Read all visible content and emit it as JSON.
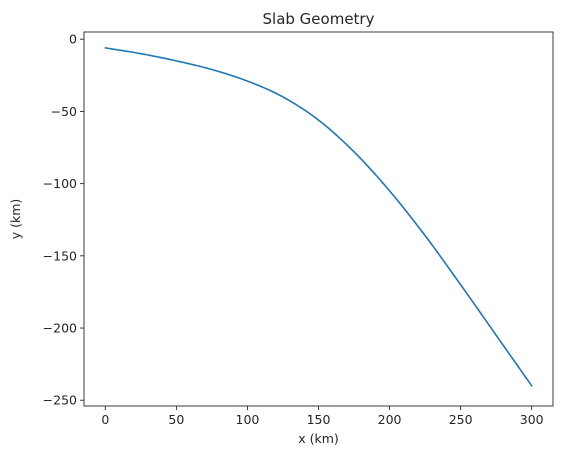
{
  "chart_data": {
    "type": "line",
    "title": "Slab Geometry",
    "xlabel": "x (km)",
    "ylabel": "y (km)",
    "xlim": [
      -15,
      315
    ],
    "ylim": [
      -254,
      5
    ],
    "xticks": [
      0,
      50,
      100,
      150,
      200,
      250,
      300
    ],
    "yticks": [
      0,
      -50,
      -100,
      -150,
      -200,
      -250
    ],
    "xtick_labels": [
      "0",
      "50",
      "100",
      "150",
      "200",
      "250",
      "300"
    ],
    "ytick_labels": [
      "0",
      "−50",
      "−100",
      "−150",
      "−200",
      "−250"
    ],
    "grid": false,
    "series": [
      {
        "color": "#1f77b4",
        "x": [
          0,
          25,
          50,
          75,
          100,
          125,
          150,
          175,
          200,
          225,
          250,
          275,
          300
        ],
        "y": [
          -6,
          -10,
          -15,
          -21,
          -29,
          -40,
          -56,
          -78,
          -105,
          -136,
          -170,
          -205,
          -240
        ]
      }
    ]
  }
}
